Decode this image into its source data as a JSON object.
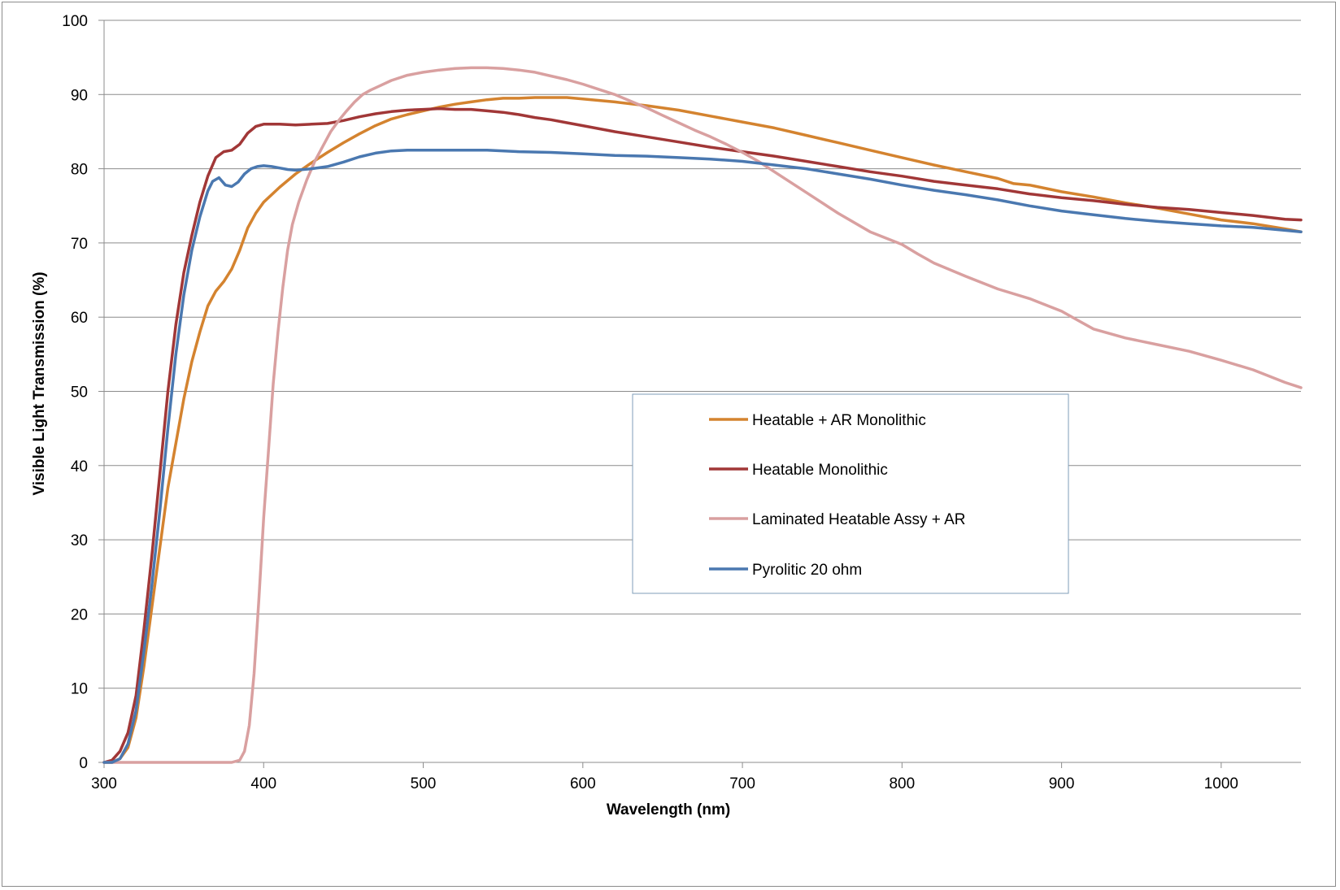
{
  "chart_data": {
    "type": "line",
    "title": "",
    "xlabel": "Wavelength (nm)",
    "ylabel": "Visible Light Transmission (%)",
    "xlim": [
      300,
      1050
    ],
    "ylim": [
      0,
      100
    ],
    "xticks": [
      300,
      400,
      500,
      600,
      700,
      800,
      900,
      1000
    ],
    "yticks": [
      0,
      10,
      20,
      30,
      40,
      50,
      60,
      70,
      80,
      90,
      100
    ],
    "grid": "horizontal",
    "legend_position": "center-right",
    "series": [
      {
        "name": "Heatable + AR Monolithic",
        "color": "#D4832F",
        "points": [
          [
            300,
            0
          ],
          [
            305,
            0
          ],
          [
            310,
            0.5
          ],
          [
            315,
            2
          ],
          [
            320,
            6
          ],
          [
            325,
            13
          ],
          [
            330,
            21
          ],
          [
            335,
            29
          ],
          [
            340,
            37
          ],
          [
            345,
            43
          ],
          [
            350,
            49
          ],
          [
            355,
            54
          ],
          [
            360,
            58
          ],
          [
            365,
            61.5
          ],
          [
            370,
            63.5
          ],
          [
            375,
            64.8
          ],
          [
            380,
            66.5
          ],
          [
            385,
            69
          ],
          [
            390,
            72
          ],
          [
            395,
            74
          ],
          [
            400,
            75.5
          ],
          [
            410,
            77.5
          ],
          [
            420,
            79.3
          ],
          [
            430,
            80.8
          ],
          [
            440,
            82.2
          ],
          [
            450,
            83.5
          ],
          [
            460,
            84.7
          ],
          [
            470,
            85.8
          ],
          [
            480,
            86.7
          ],
          [
            490,
            87.3
          ],
          [
            500,
            87.8
          ],
          [
            510,
            88.3
          ],
          [
            520,
            88.7
          ],
          [
            530,
            89
          ],
          [
            540,
            89.3
          ],
          [
            550,
            89.5
          ],
          [
            560,
            89.5
          ],
          [
            570,
            89.6
          ],
          [
            580,
            89.6
          ],
          [
            590,
            89.6
          ],
          [
            600,
            89.4
          ],
          [
            620,
            89
          ],
          [
            640,
            88.5
          ],
          [
            660,
            87.9
          ],
          [
            680,
            87.1
          ],
          [
            700,
            86.3
          ],
          [
            720,
            85.5
          ],
          [
            740,
            84.5
          ],
          [
            760,
            83.5
          ],
          [
            780,
            82.5
          ],
          [
            800,
            81.5
          ],
          [
            820,
            80.5
          ],
          [
            840,
            79.6
          ],
          [
            860,
            78.7
          ],
          [
            870,
            78
          ],
          [
            880,
            77.8
          ],
          [
            900,
            76.9
          ],
          [
            920,
            76.2
          ],
          [
            940,
            75.4
          ],
          [
            960,
            74.7
          ],
          [
            980,
            73.9
          ],
          [
            1000,
            73.1
          ],
          [
            1020,
            72.6
          ],
          [
            1040,
            71.9
          ],
          [
            1050,
            71.5
          ]
        ]
      },
      {
        "name": "Heatable Monolithic",
        "color": "#A13737",
        "points": [
          [
            300,
            0
          ],
          [
            305,
            0.3
          ],
          [
            310,
            1.5
          ],
          [
            315,
            4
          ],
          [
            320,
            9
          ],
          [
            325,
            18
          ],
          [
            330,
            28
          ],
          [
            335,
            39
          ],
          [
            340,
            50
          ],
          [
            345,
            59
          ],
          [
            350,
            66
          ],
          [
            355,
            71
          ],
          [
            360,
            75.5
          ],
          [
            365,
            79
          ],
          [
            370,
            81.5
          ],
          [
            375,
            82.3
          ],
          [
            380,
            82.5
          ],
          [
            385,
            83.3
          ],
          [
            390,
            84.8
          ],
          [
            395,
            85.7
          ],
          [
            400,
            86
          ],
          [
            410,
            86
          ],
          [
            420,
            85.9
          ],
          [
            430,
            86
          ],
          [
            440,
            86.1
          ],
          [
            450,
            86.5
          ],
          [
            460,
            87
          ],
          [
            470,
            87.4
          ],
          [
            480,
            87.7
          ],
          [
            490,
            87.9
          ],
          [
            500,
            88
          ],
          [
            510,
            88.1
          ],
          [
            520,
            88
          ],
          [
            530,
            88
          ],
          [
            540,
            87.8
          ],
          [
            550,
            87.6
          ],
          [
            560,
            87.3
          ],
          [
            570,
            86.9
          ],
          [
            580,
            86.6
          ],
          [
            590,
            86.2
          ],
          [
            600,
            85.8
          ],
          [
            620,
            85
          ],
          [
            640,
            84.3
          ],
          [
            660,
            83.6
          ],
          [
            680,
            82.9
          ],
          [
            700,
            82.3
          ],
          [
            720,
            81.7
          ],
          [
            740,
            81
          ],
          [
            760,
            80.3
          ],
          [
            780,
            79.6
          ],
          [
            800,
            79
          ],
          [
            820,
            78.3
          ],
          [
            840,
            77.8
          ],
          [
            860,
            77.3
          ],
          [
            880,
            76.6
          ],
          [
            900,
            76.1
          ],
          [
            920,
            75.7
          ],
          [
            940,
            75.2
          ],
          [
            960,
            74.8
          ],
          [
            980,
            74.5
          ],
          [
            1000,
            74.1
          ],
          [
            1020,
            73.7
          ],
          [
            1040,
            73.2
          ],
          [
            1050,
            73.1
          ]
        ]
      },
      {
        "name": "Laminated Heatable Assy +  AR",
        "color": "#D9A0A0",
        "points": [
          [
            300,
            0
          ],
          [
            330,
            0
          ],
          [
            360,
            0
          ],
          [
            380,
            0
          ],
          [
            385,
            0.3
          ],
          [
            388,
            1.5
          ],
          [
            391,
            5
          ],
          [
            394,
            12
          ],
          [
            397,
            22
          ],
          [
            400,
            33
          ],
          [
            403,
            42
          ],
          [
            406,
            51
          ],
          [
            409,
            58
          ],
          [
            412,
            64
          ],
          [
            415,
            69
          ],
          [
            418,
            72.5
          ],
          [
            422,
            75.5
          ],
          [
            427,
            78.5
          ],
          [
            432,
            81
          ],
          [
            437,
            83
          ],
          [
            442,
            85
          ],
          [
            447,
            86.5
          ],
          [
            452,
            87.8
          ],
          [
            457,
            89
          ],
          [
            462,
            90
          ],
          [
            467,
            90.6
          ],
          [
            472,
            91.1
          ],
          [
            480,
            91.9
          ],
          [
            490,
            92.6
          ],
          [
            500,
            93
          ],
          [
            510,
            93.3
          ],
          [
            520,
            93.5
          ],
          [
            530,
            93.6
          ],
          [
            540,
            93.6
          ],
          [
            550,
            93.5
          ],
          [
            560,
            93.3
          ],
          [
            570,
            93
          ],
          [
            580,
            92.5
          ],
          [
            590,
            92
          ],
          [
            600,
            91.4
          ],
          [
            610,
            90.7
          ],
          [
            620,
            90
          ],
          [
            630,
            89.1
          ],
          [
            640,
            88.2
          ],
          [
            650,
            87.2
          ],
          [
            660,
            86.2
          ],
          [
            670,
            85.2
          ],
          [
            680,
            84.3
          ],
          [
            690,
            83.3
          ],
          [
            700,
            82.2
          ],
          [
            710,
            81
          ],
          [
            720,
            79.6
          ],
          [
            740,
            76.8
          ],
          [
            760,
            74
          ],
          [
            780,
            71.5
          ],
          [
            800,
            69.8
          ],
          [
            810,
            68.5
          ],
          [
            820,
            67.3
          ],
          [
            840,
            65.5
          ],
          [
            860,
            63.8
          ],
          [
            880,
            62.5
          ],
          [
            900,
            60.8
          ],
          [
            910,
            59.6
          ],
          [
            920,
            58.4
          ],
          [
            940,
            57.2
          ],
          [
            960,
            56.3
          ],
          [
            980,
            55.4
          ],
          [
            1000,
            54.2
          ],
          [
            1020,
            52.9
          ],
          [
            1040,
            51.2
          ],
          [
            1050,
            50.5
          ]
        ]
      },
      {
        "name": "Pyrolitic 20 ohm",
        "color": "#4A78B0",
        "points": [
          [
            300,
            0
          ],
          [
            305,
            0
          ],
          [
            310,
            0.5
          ],
          [
            315,
            2.5
          ],
          [
            320,
            7
          ],
          [
            325,
            15
          ],
          [
            330,
            24
          ],
          [
            335,
            34
          ],
          [
            340,
            45
          ],
          [
            345,
            55
          ],
          [
            350,
            63
          ],
          [
            355,
            69
          ],
          [
            360,
            73.5
          ],
          [
            365,
            77
          ],
          [
            368,
            78.3
          ],
          [
            372,
            78.8
          ],
          [
            376,
            77.8
          ],
          [
            380,
            77.6
          ],
          [
            384,
            78.2
          ],
          [
            388,
            79.3
          ],
          [
            392,
            80
          ],
          [
            396,
            80.3
          ],
          [
            400,
            80.4
          ],
          [
            405,
            80.3
          ],
          [
            410,
            80.1
          ],
          [
            415,
            79.9
          ],
          [
            420,
            79.8
          ],
          [
            430,
            80
          ],
          [
            440,
            80.3
          ],
          [
            450,
            80.9
          ],
          [
            460,
            81.6
          ],
          [
            470,
            82.1
          ],
          [
            480,
            82.4
          ],
          [
            490,
            82.5
          ],
          [
            500,
            82.5
          ],
          [
            520,
            82.5
          ],
          [
            540,
            82.5
          ],
          [
            560,
            82.3
          ],
          [
            580,
            82.2
          ],
          [
            600,
            82
          ],
          [
            620,
            81.8
          ],
          [
            640,
            81.7
          ],
          [
            660,
            81.5
          ],
          [
            680,
            81.3
          ],
          [
            700,
            81
          ],
          [
            720,
            80.5
          ],
          [
            740,
            80
          ],
          [
            760,
            79.3
          ],
          [
            780,
            78.6
          ],
          [
            800,
            77.8
          ],
          [
            820,
            77.1
          ],
          [
            840,
            76.5
          ],
          [
            860,
            75.8
          ],
          [
            880,
            75
          ],
          [
            900,
            74.3
          ],
          [
            920,
            73.8
          ],
          [
            940,
            73.3
          ],
          [
            960,
            72.9
          ],
          [
            980,
            72.6
          ],
          [
            1000,
            72.3
          ],
          [
            1020,
            72.1
          ],
          [
            1040,
            71.7
          ],
          [
            1050,
            71.5
          ]
        ]
      }
    ]
  }
}
